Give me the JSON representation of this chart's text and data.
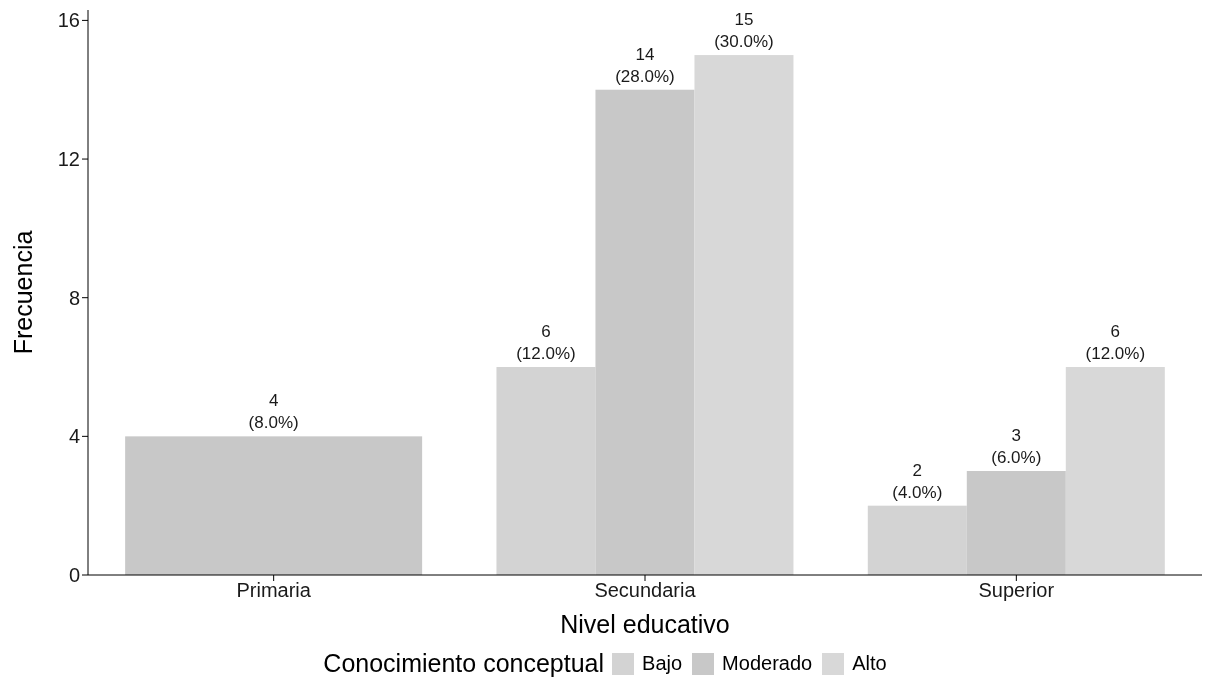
{
  "chart_data": {
    "type": "bar",
    "xlabel": "Nivel educativo",
    "ylabel": "Frecuencia",
    "legend_title": "Conocimiento conceptual",
    "legend": "bottom",
    "grid": false,
    "categories": [
      "Primaria",
      "Secundaria",
      "Superior"
    ],
    "series": [
      {
        "name": "Bajo",
        "color": "#d3d3d3",
        "values": [
          null,
          6,
          2
        ],
        "value_labels": [
          null,
          "6\n(12.0%)",
          "2\n(4.0%)"
        ]
      },
      {
        "name": "Moderado",
        "color": "#c8c8c8",
        "values": [
          4,
          14,
          3
        ],
        "value_labels": [
          "4\n(8.0%)",
          "14\n(28.0%)",
          "3\n(6.0%)"
        ]
      },
      {
        "name": "Alto",
        "color": "#d8d8d8",
        "values": [
          null,
          15,
          6
        ],
        "value_labels": [
          null,
          "15\n(30.0%)",
          "6\n(12.0%)"
        ]
      }
    ],
    "ylim": [
      0,
      16.3
    ],
    "yticks": [
      0,
      4,
      8,
      12,
      16
    ]
  }
}
